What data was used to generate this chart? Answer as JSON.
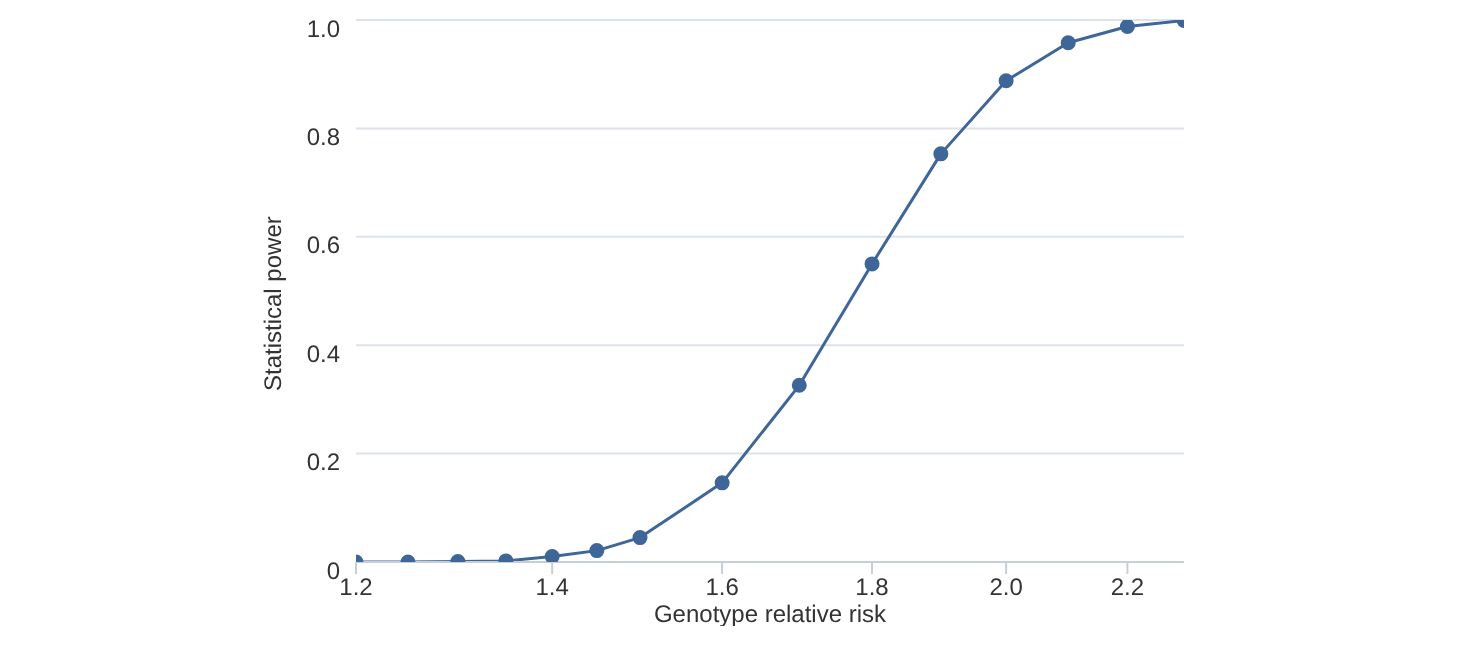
{
  "chart_data": {
    "type": "line",
    "xlabel": "Genotype relative risk",
    "ylabel": "Statistical power",
    "log": "x",
    "grid": "y",
    "marker": "circle",
    "line_style": "solid",
    "x": [
      1.2,
      1.25,
      1.3,
      1.35,
      1.4,
      1.45,
      1.5,
      1.6,
      1.7,
      1.8,
      1.9,
      2.0,
      2.1,
      2.2,
      2.3
    ],
    "series": [
      {
        "color": "#3e6699",
        "values": [
          0,
          0,
          0.001,
          0.002,
          0.01,
          0.021,
          0.045,
          0.146,
          0.326,
          0.55,
          0.753,
          0.888,
          0.958,
          0.988,
          0.999
        ]
      }
    ],
    "xlim": [
      1.2,
      2.3
    ],
    "xticks": [
      {
        "value": 1.2,
        "label": "1.2"
      },
      {
        "value": 1.4,
        "label": "1.4"
      },
      {
        "value": 1.6,
        "label": "1.6"
      },
      {
        "value": 1.8,
        "label": "1.8"
      },
      {
        "value": 2.0,
        "label": "2.0"
      },
      {
        "value": 2.2,
        "label": "2.2"
      }
    ],
    "ylim": [
      0,
      1
    ],
    "yticks": [
      0,
      {
        "value": 0.2,
        "label": "0.2"
      },
      {
        "value": 0.4,
        "label": "0.4"
      },
      {
        "value": 0.6,
        "label": "0.6"
      },
      {
        "value": 0.8,
        "label": "0.8"
      },
      {
        "value": 1,
        "label": "1.0"
      }
    ]
  }
}
